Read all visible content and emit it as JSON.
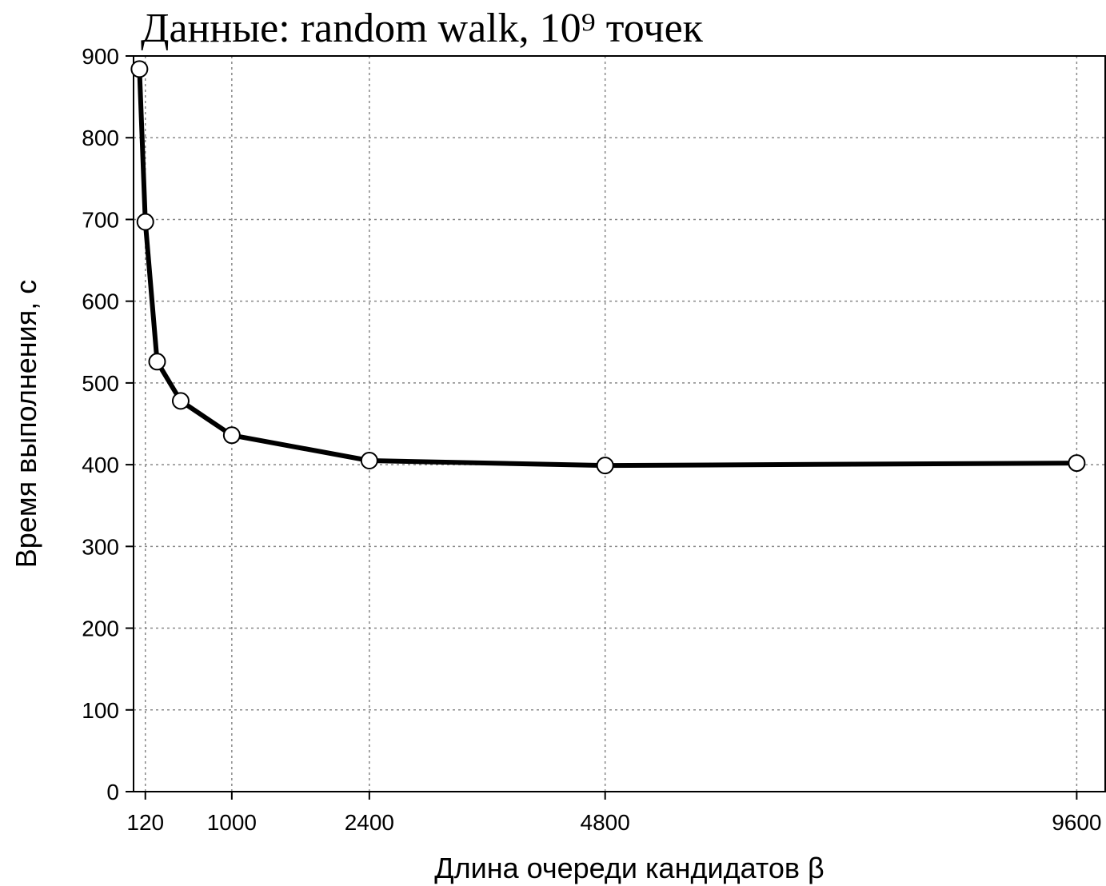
{
  "chart_data": {
    "type": "line",
    "title": "Данные: random walk, 10⁹ точек",
    "xlabel": "Длина очереди кандидатов β",
    "ylabel": "Время выполнения, с",
    "x": [
      60,
      120,
      240,
      480,
      1000,
      2400,
      4800,
      9600
    ],
    "series": [
      {
        "color": "#000000",
        "values": [
          884,
          697,
          526,
          478,
          436,
          405,
          399,
          402
        ]
      }
    ],
    "xlim": [
      0,
      9890
    ],
    "xticks": [
      120,
      1000,
      2400,
      4800,
      9600
    ],
    "ylim": [
      0,
      900
    ],
    "yticks": [
      0,
      100,
      200,
      300,
      400,
      500,
      600,
      700,
      800,
      900
    ],
    "grid": true
  }
}
